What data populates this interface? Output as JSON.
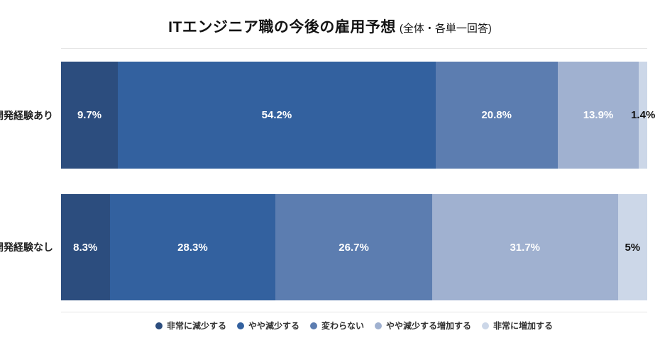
{
  "title": {
    "main": "ITエンジニア職の今後の雇用予想",
    "sub": "(全体・各単一回答)"
  },
  "chart_data": {
    "type": "bar",
    "orientation": "horizontal-stacked",
    "title": "ITエンジニア職の今後の雇用予想 (全体・各単一回答)",
    "categories": [
      "開発経験あり",
      "開発経験なし"
    ],
    "series": [
      {
        "name": "非常に減少する",
        "color": "#2c4d7e",
        "text_color": "#ffffff",
        "values": [
          9.7,
          8.3
        ]
      },
      {
        "name": "やや減少する",
        "color": "#33619f",
        "text_color": "#ffffff",
        "values": [
          54.2,
          28.3
        ]
      },
      {
        "name": "変わらない",
        "color": "#5c7db0",
        "text_color": "#ffffff",
        "values": [
          20.8,
          26.7
        ]
      },
      {
        "name": "やや減少する増加する",
        "color": "#a0b1d0",
        "text_color": "#ffffff",
        "values": [
          13.9,
          31.7
        ]
      },
      {
        "name": "非常に増加する",
        "color": "#ccd7e8",
        "text_color": "#111111",
        "values": [
          1.4,
          5
        ]
      }
    ],
    "value_labels": [
      [
        "9.7%",
        "54.2%",
        "20.8%",
        "13.9%",
        "1.4%"
      ],
      [
        "8.3%",
        "28.3%",
        "26.7%",
        "31.7%",
        "5%"
      ]
    ],
    "xlim": [
      0,
      100
    ],
    "legend_position": "bottom",
    "grid": "top-and-bottom-border-lines-only",
    "background": "#ffffff"
  }
}
